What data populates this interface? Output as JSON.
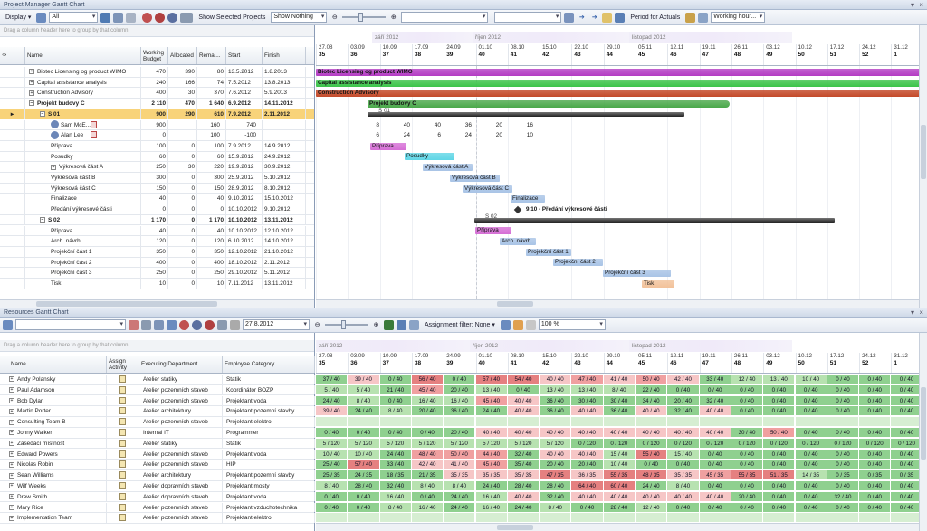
{
  "pm": {
    "title": "Project Manager Gantt Chart",
    "toolbar": {
      "display": "Display",
      "filter": "All",
      "show_selected": "Show Selected Projects",
      "show_nothing": "Show Nothing",
      "period": "Period for Actuals",
      "working_hours": "Working hour..."
    },
    "group_hint": "Drag a column header here to group by that column",
    "cols": {
      "name": "Name",
      "budget": "Working Budget",
      "allocated": "Allocated",
      "remaining": "Remai...",
      "start": "Start",
      "finish": "Finish"
    },
    "rows": [
      {
        "name": "Biotec Licensing og product WIMO",
        "b": "470",
        "a": "390",
        "r": "80",
        "s": "13.5.2012",
        "f": "1.8.2013",
        "lvl": 0,
        "exp": "+"
      },
      {
        "name": "Capital assistance analysis",
        "b": "240",
        "a": "166",
        "r": "74",
        "s": "7.5.2012",
        "f": "13.8.2013",
        "lvl": 0,
        "exp": "+"
      },
      {
        "name": "Construction Advisory",
        "b": "400",
        "a": "30",
        "r": "370",
        "s": "7.6.2012",
        "f": "5.9.2013",
        "lvl": 0,
        "exp": "+"
      },
      {
        "name": "Projekt budovy C",
        "b": "2 110",
        "a": "470",
        "r": "1 640",
        "s": "6.9.2012",
        "f": "14.11.2012",
        "lvl": 0,
        "exp": "-",
        "bold": true
      },
      {
        "name": "S 01",
        "b": "900",
        "a": "290",
        "r": "610",
        "s": "7.9.2012",
        "f": "2.11.2012",
        "lvl": 1,
        "exp": "-",
        "bold": true,
        "hl": true
      },
      {
        "name": "Sam McE...",
        "b": "900",
        "a": "",
        "r": "160",
        "s": "740",
        "f": "",
        "lvl": 2,
        "sub": true
      },
      {
        "name": "Alan Lee",
        "b": "0",
        "a": "",
        "r": "100",
        "s": "-100",
        "f": "",
        "lvl": 2,
        "sub": true
      },
      {
        "name": "Příprava",
        "b": "100",
        "a": "0",
        "r": "100",
        "s": "7.9.2012",
        "f": "14.9.2012",
        "lvl": 2
      },
      {
        "name": "Posudky",
        "b": "60",
        "a": "0",
        "r": "60",
        "s": "15.9.2012",
        "f": "24.9.2012",
        "lvl": 2
      },
      {
        "name": "Výkresová část A",
        "b": "250",
        "a": "30",
        "r": "220",
        "s": "19.9.2012",
        "f": "30.9.2012",
        "lvl": 2,
        "exp": "+"
      },
      {
        "name": "Výkresová část B",
        "b": "300",
        "a": "0",
        "r": "300",
        "s": "25.9.2012",
        "f": "5.10.2012",
        "lvl": 2
      },
      {
        "name": "Výkresová část C",
        "b": "150",
        "a": "0",
        "r": "150",
        "s": "28.9.2012",
        "f": "8.10.2012",
        "lvl": 2
      },
      {
        "name": "Finalizace",
        "b": "40",
        "a": "0",
        "r": "40",
        "s": "9.10.2012",
        "f": "15.10.2012",
        "lvl": 2
      },
      {
        "name": "Předání výkresové části",
        "b": "0",
        "a": "0",
        "r": "0",
        "s": "10.10.2012",
        "f": "9.10.2012",
        "lvl": 2
      },
      {
        "name": "S 02",
        "b": "1 170",
        "a": "0",
        "r": "1 170",
        "s": "10.10.2012",
        "f": "13.11.2012",
        "lvl": 1,
        "exp": "-",
        "bold": true
      },
      {
        "name": "Příprava",
        "b": "40",
        "a": "0",
        "r": "40",
        "s": "10.10.2012",
        "f": "12.10.2012",
        "lvl": 2
      },
      {
        "name": "Arch. návrh",
        "b": "120",
        "a": "0",
        "r": "120",
        "s": "6.10.2012",
        "f": "14.10.2012",
        "lvl": 2
      },
      {
        "name": "Projekční část 1",
        "b": "350",
        "a": "0",
        "r": "350",
        "s": "12.10.2012",
        "f": "21.10.2012",
        "lvl": 2
      },
      {
        "name": "Projekční část 2",
        "b": "400",
        "a": "0",
        "r": "400",
        "s": "18.10.2012",
        "f": "2.11.2012",
        "lvl": 2
      },
      {
        "name": "Projekční část 3",
        "b": "250",
        "a": "0",
        "r": "250",
        "s": "29.10.2012",
        "f": "5.11.2012",
        "lvl": 2
      },
      {
        "name": "Tisk",
        "b": "10",
        "a": "0",
        "r": "10",
        "s": "7.11.2012",
        "f": "13.11.2012",
        "lvl": 2
      }
    ],
    "months": [
      {
        "label": "září 2012"
      },
      {
        "label": "říjen 2012"
      },
      {
        "label": "listopad 2012"
      }
    ],
    "weeks": [
      [
        "27.08",
        "35"
      ],
      [
        "03.09",
        "36"
      ],
      [
        "10.09",
        "37"
      ],
      [
        "17.09",
        "38"
      ],
      [
        "24.09",
        "39"
      ],
      [
        "01.10",
        "40"
      ],
      [
        "08.10",
        "41"
      ],
      [
        "15.10",
        "42"
      ],
      [
        "22.10",
        "43"
      ],
      [
        "29.10",
        "44"
      ],
      [
        "05.11",
        "45"
      ],
      [
        "12.11",
        "46"
      ],
      [
        "19.11",
        "47"
      ],
      [
        "26.11",
        "48"
      ],
      [
        "03.12",
        "49"
      ],
      [
        "10.12",
        "50"
      ],
      [
        "17.12",
        "51"
      ],
      [
        "24.12",
        "52"
      ],
      [
        "31.12",
        "1"
      ]
    ],
    "bars": [
      {
        "label": "Biotec Licensing og product WIMO",
        "color": "#b43cc4"
      },
      {
        "label": "Capital assistance analysis",
        "color": "#3cc44a"
      },
      {
        "label": "Construction Advisory",
        "color": "#c44a2a"
      },
      {
        "label": "Projekt budovy C",
        "color": "#4aa84a"
      },
      {
        "label": "S 01",
        "color": "#333"
      },
      {
        "label": "Příprava",
        "color": "#d66fd6"
      },
      {
        "label": "Posudky",
        "color": "#5fd6e6"
      },
      {
        "label": "Výkresová část A",
        "color": "#a9c4e6"
      },
      {
        "label": "Výkresová část B",
        "color": "#a9c4e6"
      },
      {
        "label": "Výkresová část C",
        "color": "#a9c4e6"
      },
      {
        "label": "Finalizace",
        "color": "#a9c4e6"
      },
      {
        "label": "9.10 - Předání výkresové části",
        "color": "#333"
      },
      {
        "label": "S 02",
        "color": "#333"
      },
      {
        "label": "Příprava",
        "color": "#d66fd6"
      },
      {
        "label": "Arch. návrh",
        "color": "#a9c4e6"
      },
      {
        "label": "Projekční část 1",
        "color": "#a9c4e6"
      },
      {
        "label": "Projekční část 2",
        "color": "#a9c4e6"
      },
      {
        "label": "Projekční část 3",
        "color": "#a9c4e6"
      },
      {
        "label": "Tisk",
        "color": "#f2c29a"
      }
    ],
    "res_nums": [
      [
        "8",
        "40",
        "40",
        "36",
        "20",
        "16"
      ],
      [
        "6",
        "24",
        "6",
        "24",
        "20",
        "10"
      ]
    ]
  },
  "rs": {
    "title": "Resources Gantt Chart",
    "toolbar": {
      "date": "27.8.2012",
      "assignment_filter": "Assignment filter: None",
      "zoom": "100 %"
    },
    "group_hint": "Drag a column header here to group by that column",
    "cols": {
      "name": "Name",
      "assign": "Assign Activity",
      "dept": "Executing Department",
      "cat": "Employee Category"
    },
    "rows": [
      {
        "name": "Andy Polansky",
        "dept": "Atelier statiky",
        "cat": "Statik"
      },
      {
        "name": "Paul Adamson",
        "dept": "Atelier pozemních staveb",
        "cat": "Koordinátor BOZP"
      },
      {
        "name": "Bob Dylan",
        "dept": "Atelier pozemních staveb",
        "cat": "Projektant voda"
      },
      {
        "name": "Martin Porter",
        "dept": "Atelier architektury",
        "cat": "Projektant pozemní stavby"
      },
      {
        "name": "Consulting Team B",
        "dept": "Atelier pozemních staveb",
        "cat": "Projektant elektro"
      },
      {
        "name": "Johny Walker",
        "dept": "Internal IT",
        "cat": "Programmer"
      },
      {
        "name": "Zasedací místnost",
        "dept": "Atelier statiky",
        "cat": "Statik"
      },
      {
        "name": "Edward Powers",
        "dept": "Atelier pozemních staveb",
        "cat": "Projektant voda"
      },
      {
        "name": "Nicolas Robin",
        "dept": "Atelier pozemních staveb",
        "cat": "HIP"
      },
      {
        "name": "Sean Williams",
        "dept": "Atelier architektury",
        "cat": "Projektant pozemní stavby"
      },
      {
        "name": "Wilf Weeks",
        "dept": "Atelier dopravních staveb",
        "cat": "Projektant mosty"
      },
      {
        "name": "Drew Smith",
        "dept": "Atelier dopravních staveb",
        "cat": "Projektant voda"
      },
      {
        "name": "Mary Rice",
        "dept": "Atelier pozemních staveb",
        "cat": "Projektant vzduchotechnika"
      },
      {
        "name": "Implementation Team",
        "dept": "Atelier pozemních staveb",
        "cat": "Projektant elektro"
      }
    ],
    "cells": [
      [
        "37 / 40",
        "39 / 40",
        "0 / 40",
        "56 / 40",
        "0 / 40",
        "57 / 40",
        "54 / 40",
        "40 / 40",
        "47 / 40",
        "41 / 40",
        "50 / 40",
        "42 / 40",
        "33 / 40",
        "12 / 40",
        "13 / 40",
        "10 / 40",
        "0 / 40",
        "0 / 40",
        "0 / 40"
      ],
      [
        "5 / 40",
        "5 / 40",
        "21 / 40",
        "45 / 40",
        "20 / 40",
        "13 / 40",
        "0 / 40",
        "13 / 40",
        "13 / 40",
        "8 / 40",
        "22 / 40",
        "0 / 40",
        "0 / 40",
        "0 / 40",
        "0 / 40",
        "0 / 40",
        "0 / 40",
        "0 / 40",
        "0 / 40"
      ],
      [
        "24 / 40",
        "8 / 40",
        "0 / 40",
        "16 / 40",
        "16 / 40",
        "45 / 40",
        "40 / 40",
        "36 / 40",
        "30 / 40",
        "30 / 40",
        "34 / 40",
        "20 / 40",
        "32 / 40",
        "0 / 40",
        "0 / 40",
        "0 / 40",
        "0 / 40",
        "0 / 40",
        "0 / 40"
      ],
      [
        "39 / 40",
        "24 / 40",
        "8 / 40",
        "20 / 40",
        "36 / 40",
        "24 / 40",
        "40 / 40",
        "36 / 40",
        "40 / 40",
        "36 / 40",
        "40 / 40",
        "32 / 40",
        "40 / 40",
        "0 / 40",
        "0 / 40",
        "0 / 40",
        "0 / 40",
        "0 / 40",
        "0 / 40"
      ],
      [
        "",
        "",
        "",
        "",
        "",
        "",
        "",
        "",
        "",
        "",
        "",
        "",
        "",
        "",
        "",
        "",
        "",
        "",
        ""
      ],
      [
        "0 / 40",
        "0 / 40",
        "0 / 40",
        "0 / 40",
        "20 / 40",
        "40 / 40",
        "40 / 40",
        "40 / 40",
        "40 / 40",
        "40 / 40",
        "40 / 40",
        "40 / 40",
        "40 / 40",
        "30 / 40",
        "50 / 40",
        "0 / 40",
        "0 / 40",
        "0 / 40",
        "0 / 40"
      ],
      [
        "5 / 120",
        "5 / 120",
        "5 / 120",
        "5 / 120",
        "5 / 120",
        "5 / 120",
        "5 / 120",
        "5 / 120",
        "0 / 120",
        "0 / 120",
        "0 / 120",
        "0 / 120",
        "0 / 120",
        "0 / 120",
        "0 / 120",
        "0 / 120",
        "0 / 120",
        "0 / 120",
        "0 / 120"
      ],
      [
        "10 / 40",
        "10 / 40",
        "24 / 40",
        "48 / 40",
        "50 / 40",
        "44 / 40",
        "32 / 40",
        "40 / 40",
        "40 / 40",
        "15 / 40",
        "55 / 40",
        "15 / 40",
        "0 / 40",
        "0 / 40",
        "0 / 40",
        "0 / 40",
        "0 / 40",
        "0 / 40",
        "0 / 40"
      ],
      [
        "25 / 40",
        "57 / 40",
        "33 / 40",
        "42 / 40",
        "41 / 40",
        "45 / 40",
        "35 / 40",
        "20 / 40",
        "20 / 40",
        "10 / 40",
        "0 / 40",
        "0 / 40",
        "0 / 40",
        "0 / 40",
        "0 / 40",
        "0 / 40",
        "0 / 40",
        "0 / 40",
        "0 / 40"
      ],
      [
        "25 / 35",
        "24 / 35",
        "18 / 35",
        "21 / 35",
        "35 / 35",
        "35 / 35",
        "35 / 35",
        "47 / 35",
        "36 / 35",
        "55 / 35",
        "48 / 35",
        "35 / 35",
        "45 / 35",
        "55 / 35",
        "51 / 35",
        "14 / 35",
        "0 / 35",
        "0 / 35",
        "0 / 35"
      ],
      [
        "8 / 40",
        "28 / 40",
        "32 / 40",
        "8 / 40",
        "8 / 40",
        "24 / 40",
        "28 / 40",
        "28 / 40",
        "64 / 40",
        "60 / 40",
        "24 / 40",
        "8 / 40",
        "0 / 40",
        "0 / 40",
        "0 / 40",
        "0 / 40",
        "0 / 40",
        "0 / 40",
        "0 / 40"
      ],
      [
        "0 / 40",
        "0 / 40",
        "16 / 40",
        "0 / 40",
        "24 / 40",
        "16 / 40",
        "40 / 40",
        "32 / 40",
        "40 / 40",
        "40 / 40",
        "40 / 40",
        "40 / 40",
        "40 / 40",
        "20 / 40",
        "0 / 40",
        "0 / 40",
        "32 / 40",
        "0 / 40",
        "0 / 40"
      ],
      [
        "0 / 40",
        "0 / 40",
        "8 / 40",
        "16 / 40",
        "24 / 40",
        "16 / 40",
        "24 / 40",
        "8 / 40",
        "0 / 40",
        "28 / 40",
        "12 / 40",
        "0 / 40",
        "0 / 40",
        "0 / 40",
        "0 / 40",
        "0 / 40",
        "0 / 40",
        "0 / 40",
        "0 / 40"
      ],
      [
        "",
        "",
        "",
        "",
        "",
        "",
        "",
        "",
        "",
        "",
        "",
        "",
        "",
        "",
        "",
        "",
        "",
        "",
        ""
      ]
    ]
  }
}
